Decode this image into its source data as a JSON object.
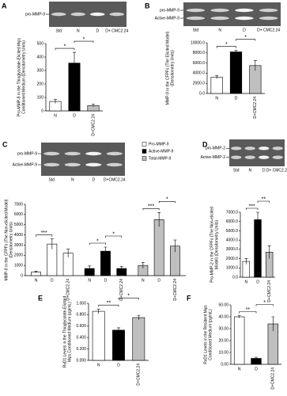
{
  "chart_data": [
    {
      "type": "bar",
      "panel": "A",
      "gel": {
        "bands": [
          "pro-MMP-9"
        ],
        "lanes": [
          "Std",
          "N",
          "D",
          "D+ CMC2.24"
        ]
      },
      "y_label": [
        "Pro-MMP-9 in the Thioglycolate-Elicited Mφs",
        "Conditioned Medium (Densitometry Units)"
      ],
      "categories": [
        "N",
        "D",
        "D+CMC2.24"
      ],
      "values": [
        70,
        355,
        40
      ],
      "errors": [
        15,
        80,
        10
      ],
      "colors": [
        "#ffffff",
        "#000000",
        "#bfbfbf"
      ],
      "ylim": [
        0,
        500
      ],
      "yticks": [
        0,
        100,
        200,
        300,
        400,
        500
      ],
      "annotations": [
        "*",
        "*"
      ]
    },
    {
      "type": "bar",
      "panel": "B",
      "gel": {
        "bands": [
          "pro-MMP-9",
          "Active-MMP-9"
        ],
        "lanes": [
          "Std",
          "N",
          "D",
          "D+ CMC2.24"
        ]
      },
      "y_label": [
        "MMP-9 in the CFPFs (The Elicited Model)",
        "(Densitometry Units)"
      ],
      "categories": [
        "N",
        "D",
        "D+CMC2.24"
      ],
      "values": [
        3200,
        8200,
        5500
      ],
      "errors": [
        300,
        300,
        1000
      ],
      "colors": [
        "#ffffff",
        "#000000",
        "#bfbfbf"
      ],
      "ylim": [
        0,
        10000
      ],
      "yticks": [
        {
          "value": 0,
          "label": "0.0"
        },
        {
          "value": 2000,
          "label": "2000.0"
        },
        {
          "value": 4000,
          "label": "4000.0"
        },
        {
          "value": 6000,
          "label": "6000.0"
        },
        {
          "value": 8000,
          "label": "8000.0"
        },
        {
          "value": 10000,
          "label": "10000.0"
        }
      ],
      "annotations": [
        "*",
        "*"
      ]
    },
    {
      "type": "grouped-bar",
      "panel": "C",
      "gel": {
        "bands": [
          "pro-MMP-9",
          "Active-MMP-9"
        ],
        "lanes": [
          "Std",
          "N",
          "D",
          "D+CMC2.24"
        ]
      },
      "y_label": [
        "MMP-9 in the CFPFs (The Non-elicited Model)",
        "(Densitometry Units)"
      ],
      "categories": [
        "N",
        "D",
        "D+CMC2.24"
      ],
      "series": [
        {
          "name": "Pro-MMP-9",
          "color": "#ffffff",
          "values": [
            350,
            3100,
            2200
          ],
          "errors": [
            80,
            500,
            400
          ]
        },
        {
          "name": "Active-MMP-9",
          "color": "#000000",
          "values": [
            700,
            2400,
            700
          ],
          "errors": [
            250,
            400,
            200
          ]
        },
        {
          "name": "Total-MMP-9",
          "color": "#bfbfbf",
          "values": [
            1000,
            5500,
            2900
          ],
          "errors": [
            300,
            700,
            600
          ]
        }
      ],
      "ylim": [
        0,
        7000
      ],
      "yticks": [
        0,
        1000,
        2000,
        3000,
        4000,
        5000,
        6000,
        7000
      ],
      "annotations": [
        "***",
        "*",
        "*",
        "***",
        "*"
      ]
    },
    {
      "type": "bar",
      "panel": "D",
      "gel": {
        "bands": [
          "pro-MMP-2",
          "Active-MMP-2"
        ],
        "lanes": [
          "Std",
          "N",
          "D",
          "D+ CMC2.24"
        ]
      },
      "y_label": [
        "Pro-MMP-2 in the CFPFs (The Non-elicited",
        "Model) (Densitometry Units)"
      ],
      "categories": [
        "N",
        "D",
        "D+CMC2.24"
      ],
      "values": [
        1700,
        6200,
        2700
      ],
      "errors": [
        300,
        800,
        700
      ],
      "colors": [
        "#ffffff",
        "#000000",
        "#bfbfbf"
      ],
      "ylim": [
        0,
        7000
      ],
      "yticks": [
        {
          "value": 0,
          "label": "0.0"
        },
        {
          "value": 1000,
          "label": "1000.0"
        },
        {
          "value": 2000,
          "label": "2000.0"
        },
        {
          "value": 3000,
          "label": "3000.0"
        },
        {
          "value": 4000,
          "label": "4000.0"
        },
        {
          "value": 5000,
          "label": "5000.0"
        },
        {
          "value": 6000,
          "label": "6000.0"
        },
        {
          "value": 7000,
          "label": "7000.0"
        }
      ],
      "annotations": [
        "***",
        "**"
      ]
    },
    {
      "type": "bar",
      "panel": "E",
      "y_label": [
        "RvD1 Levels in the Thioglycolate-Elicited",
        "Mφs Conditioned Medium (pg/mL)"
      ],
      "categories": [
        "N",
        "D",
        "D+CMC2.24"
      ],
      "values": [
        0.86,
        0.53,
        0.75
      ],
      "errors": [
        0.04,
        0.04,
        0.04
      ],
      "colors": [
        "#ffffff",
        "#000000",
        "#bfbfbf"
      ],
      "ylim": [
        0,
        1
      ],
      "yticks": [
        {
          "value": 0,
          "label": "0.000"
        },
        {
          "value": 0.2,
          "label": "0.200"
        },
        {
          "value": 0.4,
          "label": "0.400"
        },
        {
          "value": 0.6,
          "label": "0.600"
        },
        {
          "value": 0.8,
          "label": "0.800"
        },
        {
          "value": 1,
          "label": "1.000"
        }
      ],
      "annotations": [
        "**",
        "*"
      ]
    },
    {
      "type": "bar",
      "panel": "F",
      "y_label": [
        "RvD1 Levels in the Resident Mφs",
        "Conditioned Medium (pg/mL)"
      ],
      "categories": [
        "N",
        "D",
        "D+CMC2.24"
      ],
      "values": [
        40,
        5,
        34
      ],
      "errors": [
        1,
        1,
        6
      ],
      "colors": [
        "#ffffff",
        "#000000",
        "#bfbfbf"
      ],
      "ylim": [
        0,
        50
      ],
      "yticks": [
        {
          "value": 0,
          "label": "0.00"
        },
        {
          "value": 10,
          "label": "10.00"
        },
        {
          "value": 20,
          "label": "20.00"
        },
        {
          "value": 30,
          "label": "30.00"
        },
        {
          "value": 40,
          "label": "40.00"
        },
        {
          "value": 50,
          "label": "50.00"
        }
      ],
      "annotations": [
        "**",
        "*"
      ]
    }
  ]
}
